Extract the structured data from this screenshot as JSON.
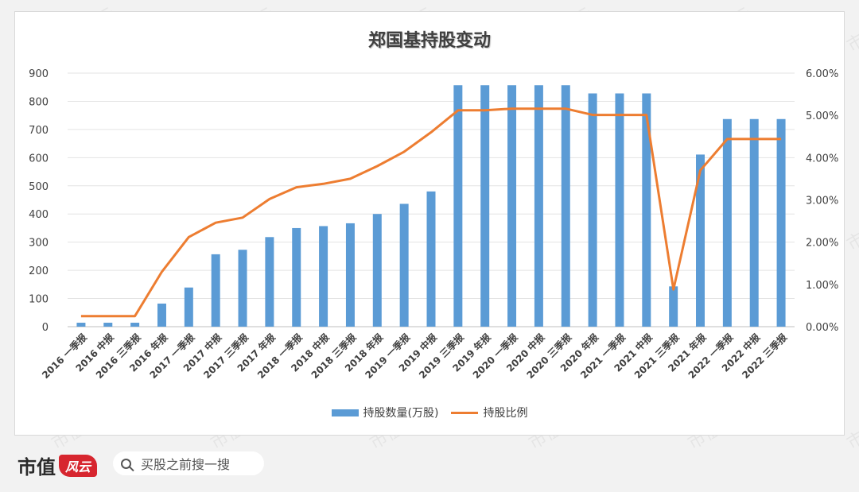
{
  "chart_data": {
    "type": "bar+line",
    "title": "郑国基持股变动",
    "categories": [
      "2016 一季报",
      "2016 中报",
      "2016 三季报",
      "2016 年报",
      "2017 一季报",
      "2017 中报",
      "2017 三季报",
      "2017 年报",
      "2018 一季报",
      "2018 中报",
      "2018 三季报",
      "2018 年报",
      "2019 一季报",
      "2019 中报",
      "2019 三季报",
      "2019 年报",
      "2020 一季报",
      "2020 中报",
      "2020 三季报",
      "2020 年报",
      "2021 一季报",
      "2021 中报",
      "2021 三季报",
      "2021 年报",
      "2022 一季报",
      "2022 中报",
      "2022 三季报"
    ],
    "series": [
      {
        "name": "持股数量(万股)",
        "type": "bar",
        "axis": "left",
        "color": "#5b9bd5",
        "values": [
          14,
          14,
          14,
          82,
          139,
          257,
          273,
          318,
          350,
          357,
          367,
          400,
          436,
          480,
          857,
          857,
          857,
          857,
          857,
          828,
          828,
          828,
          143,
          611,
          737,
          737,
          737
        ]
      },
      {
        "name": "持股比例",
        "type": "line",
        "axis": "right",
        "color": "#ed7d31",
        "values": [
          0.25,
          0.25,
          0.25,
          1.3,
          2.12,
          2.46,
          2.58,
          3.02,
          3.3,
          3.38,
          3.5,
          3.8,
          4.14,
          4.6,
          5.12,
          5.12,
          5.16,
          5.16,
          5.16,
          5.01,
          5.01,
          5.01,
          0.88,
          3.7,
          4.44,
          4.44,
          4.44
        ]
      }
    ],
    "y_left": {
      "min": 0,
      "max": 900,
      "ticks": [
        "0",
        "100",
        "200",
        "300",
        "400",
        "500",
        "600",
        "700",
        "800",
        "900"
      ]
    },
    "y_right": {
      "min": 0,
      "max": 6,
      "ticks": [
        "0.00%",
        "1.00%",
        "2.00%",
        "3.00%",
        "4.00%",
        "5.00%",
        "6.00%"
      ]
    },
    "grid": true,
    "legend": "bottom"
  },
  "legend": {
    "bar_label": "持股数量(万股)",
    "line_label": "持股比例"
  },
  "footer": {
    "brand_text": "市值",
    "brand_logo_text": "风云",
    "search_text": "买股之前搜一搜"
  },
  "watermark_text": "市值风云"
}
